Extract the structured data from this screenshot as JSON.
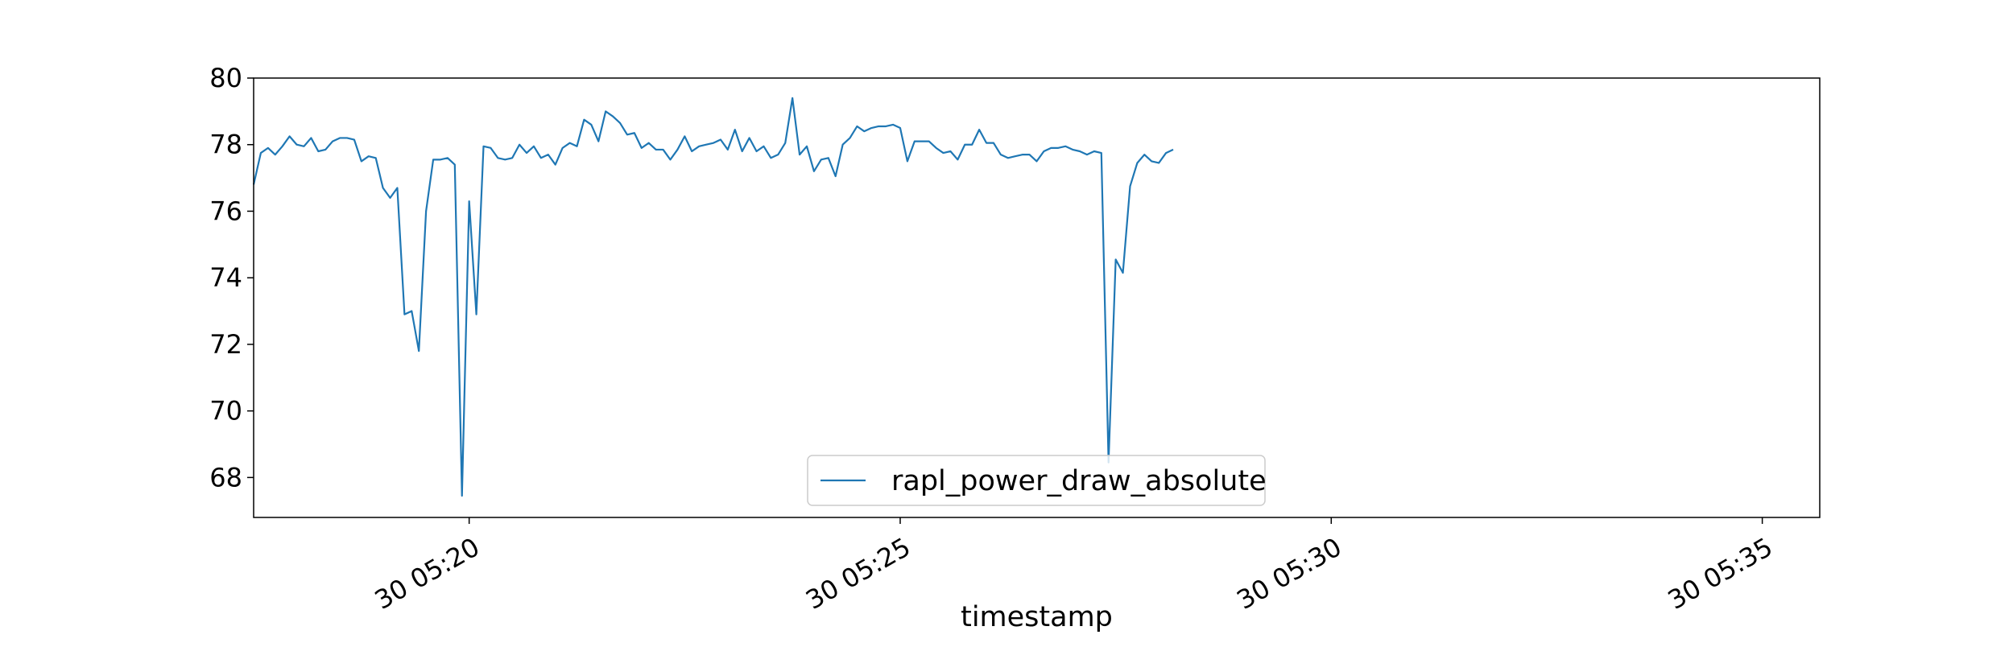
{
  "chart_data": {
    "type": "line",
    "title": "",
    "xlabel": "timestamp",
    "ylabel": "",
    "x_start": "2023-01-30T05:17:30",
    "x_step_seconds": 5,
    "xlim": [
      "2023-01-30T05:17:30",
      "2023-01-30T05:35:40"
    ],
    "ylim": [
      66.8,
      80.0
    ],
    "x_ticks": [
      {
        "value": "2023-01-30T05:20:00",
        "label": "30 05:20"
      },
      {
        "value": "2023-01-30T05:25:00",
        "label": "30 05:25"
      },
      {
        "value": "2023-01-30T05:30:00",
        "label": "30 05:30"
      },
      {
        "value": "2023-01-30T05:35:00",
        "label": "30 05:35"
      }
    ],
    "y_ticks": [
      68,
      70,
      72,
      74,
      76,
      78,
      80
    ],
    "grid": false,
    "legend_position": "lower center",
    "series": [
      {
        "name": "rapl_power_draw_absolute",
        "color": "#1f77b4",
        "values": [
          76.8,
          77.75,
          77.9,
          77.7,
          77.95,
          78.25,
          78.0,
          77.95,
          78.2,
          77.8,
          77.85,
          78.1,
          78.2,
          78.2,
          78.15,
          77.5,
          77.65,
          77.6,
          76.7,
          76.4,
          76.7,
          72.9,
          73.0,
          71.8,
          76.0,
          77.55,
          77.55,
          77.6,
          77.4,
          67.45,
          76.3,
          72.9,
          77.95,
          77.9,
          77.6,
          77.55,
          77.6,
          78.0,
          77.75,
          77.95,
          77.6,
          77.7,
          77.4,
          77.9,
          78.05,
          77.95,
          78.75,
          78.6,
          78.1,
          79.0,
          78.85,
          78.65,
          78.3,
          78.35,
          77.9,
          78.05,
          77.85,
          77.85,
          77.55,
          77.85,
          78.25,
          77.8,
          77.95,
          78.0,
          78.05,
          78.15,
          77.85,
          78.45,
          77.8,
          78.2,
          77.8,
          77.95,
          77.6,
          77.7,
          78.05,
          79.4,
          77.7,
          77.95,
          77.2,
          77.55,
          77.6,
          77.05,
          78.0,
          78.2,
          78.55,
          78.4,
          78.5,
          78.55,
          78.55,
          78.6,
          78.5,
          77.5,
          78.1,
          78.1,
          78.1,
          77.9,
          77.75,
          77.8,
          77.55,
          78.0,
          78.0,
          78.45,
          78.05,
          78.05,
          77.7,
          77.6,
          77.65,
          77.7,
          77.7,
          77.5,
          77.8,
          77.9,
          77.9,
          77.95,
          77.85,
          77.8,
          77.7,
          77.8,
          77.75,
          68.45,
          74.55,
          74.15,
          76.75,
          77.45,
          77.7,
          77.5,
          77.45,
          77.75,
          77.85
        ]
      }
    ]
  }
}
